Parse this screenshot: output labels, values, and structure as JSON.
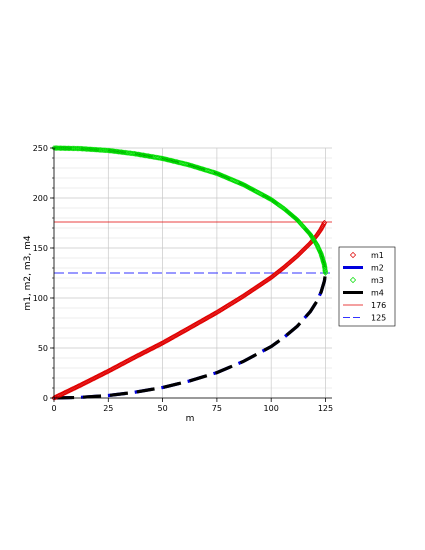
{
  "chart_data": {
    "type": "line",
    "xlabel": "m",
    "ylabel": "m1, m2, m3, m4",
    "xlim": [
      0,
      128
    ],
    "ylim": [
      0,
      250
    ],
    "xticks": [
      "0",
      "25",
      "50",
      "75",
      "100",
      "125"
    ],
    "yticks": [
      "0",
      "50",
      "100",
      "150",
      "200",
      "250"
    ],
    "grid": true,
    "legend_position": "right",
    "series": [
      {
        "name": "m1",
        "style": "diamond-markers",
        "color": "#e00000",
        "points": [
          [
            0,
            0
          ],
          [
            12,
            12.6
          ],
          [
            25,
            26.8
          ],
          [
            37,
            40.6
          ],
          [
            50,
            55.0
          ],
          [
            62,
            69.6
          ],
          [
            75,
            85.6
          ],
          [
            87,
            101.6
          ],
          [
            100,
            120.5
          ],
          [
            106,
            130.8
          ],
          [
            112,
            142.0
          ],
          [
            118,
            154.8
          ],
          [
            121,
            162.6
          ],
          [
            123,
            169.0
          ],
          [
            124.5,
            175.3
          ]
        ]
      },
      {
        "name": "m2",
        "style": "thick-dashed",
        "color": "#0000dd",
        "points": [
          [
            0,
            0
          ],
          [
            12,
            0.6
          ],
          [
            25,
            2.5
          ],
          [
            37,
            5.7
          ],
          [
            50,
            10.5
          ],
          [
            62,
            16.8
          ],
          [
            75,
            25.4
          ],
          [
            87,
            36.4
          ],
          [
            100,
            51.5
          ],
          [
            106,
            60.8
          ],
          [
            112,
            71.8
          ],
          [
            118,
            86.4
          ],
          [
            121,
            96.6
          ],
          [
            123,
            106.0
          ],
          [
            124.5,
            117.0
          ],
          [
            125,
            125.0
          ]
        ]
      },
      {
        "name": "m3",
        "style": "diamond-markers",
        "color": "#00dd00",
        "points": [
          [
            0,
            250
          ],
          [
            12,
            249.4
          ],
          [
            25,
            247.5
          ],
          [
            37,
            244.3
          ],
          [
            50,
            239.5
          ],
          [
            62,
            233.2
          ],
          [
            75,
            224.6
          ],
          [
            87,
            213.6
          ],
          [
            100,
            198.5
          ],
          [
            106,
            189.2
          ],
          [
            112,
            178.2
          ],
          [
            118,
            163.6
          ],
          [
            121,
            153.4
          ],
          [
            123,
            144.0
          ],
          [
            124.5,
            133.0
          ],
          [
            125,
            125.0
          ]
        ]
      },
      {
        "name": "m4",
        "style": "thick-dashed",
        "color": "#000000",
        "points": [
          [
            0,
            250
          ],
          [
            12,
            249.4
          ],
          [
            25,
            247.5
          ],
          [
            37,
            244.3
          ],
          [
            50,
            239.5
          ],
          [
            62,
            233.2
          ],
          [
            75,
            224.6
          ],
          [
            87,
            213.6
          ],
          [
            100,
            198.5
          ],
          [
            106,
            189.2
          ],
          [
            112,
            178.2
          ],
          [
            118,
            163.6
          ],
          [
            121,
            153.4
          ],
          [
            123,
            144.0
          ],
          [
            124.5,
            133.0
          ],
          [
            125,
            125.0
          ],
          [
            124.5,
            117.0
          ],
          [
            123,
            106.0
          ],
          [
            121,
            96.6
          ],
          [
            118,
            86.4
          ],
          [
            112,
            71.8
          ],
          [
            106,
            60.8
          ],
          [
            100,
            51.5
          ],
          [
            87,
            36.4
          ],
          [
            75,
            25.4
          ],
          [
            62,
            16.8
          ],
          [
            50,
            10.5
          ],
          [
            37,
            5.7
          ],
          [
            25,
            2.5
          ],
          [
            12,
            0.6
          ],
          [
            0,
            0
          ]
        ]
      },
      {
        "name": "176",
        "style": "thin-solid",
        "color": "#e00000",
        "points": [
          [
            0,
            176
          ],
          [
            128,
            176
          ]
        ]
      },
      {
        "name": "125",
        "style": "thin-dashed",
        "color": "#3333ff",
        "points": [
          [
            0,
            125
          ],
          [
            128,
            125
          ]
        ]
      }
    ]
  }
}
